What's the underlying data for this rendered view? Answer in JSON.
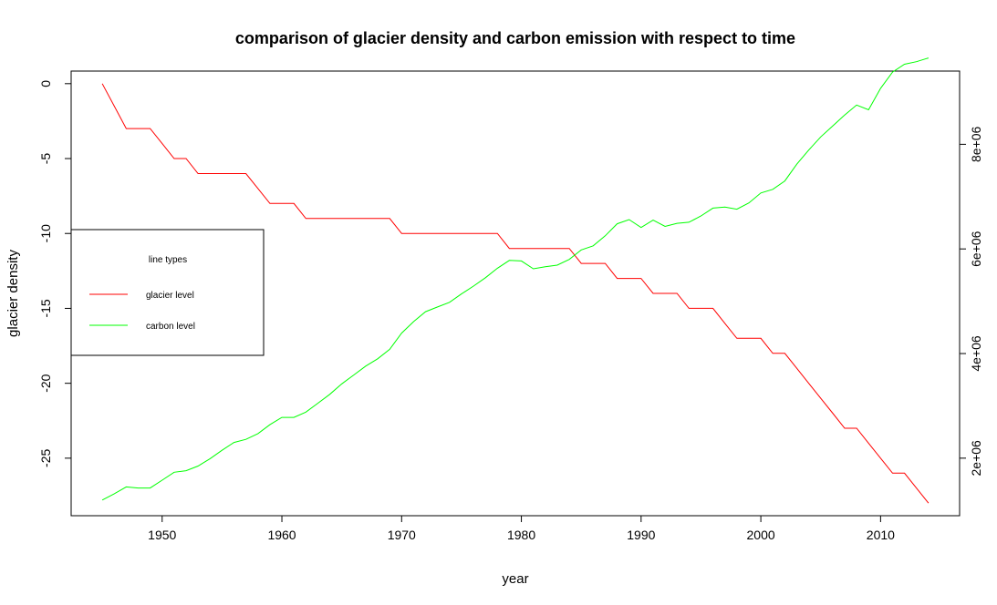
{
  "chart_data": {
    "type": "line",
    "title": "comparison of glacier density and carbon emission with respect to time",
    "xlabel": "year",
    "ylabel": "glacier density",
    "y2label": "",
    "xlim": [
      1942.4,
      2016.6
    ],
    "ylim": [
      -28.84,
      0.84
    ],
    "y2lim": [
      900000,
      9400000
    ],
    "x_ticks": [
      1950,
      1960,
      1970,
      1980,
      1990,
      2000,
      2010
    ],
    "y_ticks": [
      0,
      -5,
      -10,
      -15,
      -20,
      -25
    ],
    "y2_ticks": [
      2000000,
      4000000,
      6000000,
      8000000
    ],
    "y2_tick_labels": [
      "2e+06",
      "4e+06",
      "6e+06",
      "8e+06"
    ],
    "legend": {
      "title": "line types",
      "placement": "left",
      "entries": [
        {
          "label": "glacier level",
          "color": "#ff0000"
        },
        {
          "label": "carbon level",
          "color": "#00ff00"
        }
      ]
    },
    "series": [
      {
        "name": "glacier level",
        "axis": "left",
        "color": "#ff0000",
        "x": [
          1945,
          1947,
          1948,
          1949,
          1950,
          1951,
          1952,
          1953,
          1954,
          1955,
          1956,
          1957,
          1958,
          1959,
          1960,
          1961,
          1962,
          1963,
          1964,
          1965,
          1966,
          1967,
          1968,
          1969,
          1970,
          1971,
          1972,
          1973,
          1974,
          1975,
          1976,
          1977,
          1978,
          1979,
          1980,
          1981,
          1982,
          1983,
          1984,
          1985,
          1986,
          1987,
          1988,
          1989,
          1990,
          1991,
          1992,
          1993,
          1994,
          1995,
          1996,
          1997,
          1998,
          1999,
          2000,
          2001,
          2002,
          2003,
          2004,
          2005,
          2006,
          2007,
          2008,
          2009,
          2010,
          2011,
          2012,
          2013,
          2014
        ],
        "values": [
          0,
          -3,
          -3,
          -3,
          -4,
          -5,
          -5,
          -6,
          -6,
          -6,
          -6,
          -6,
          -7,
          -8,
          -8,
          -8,
          -9,
          -9,
          -9,
          -9,
          -9,
          -9,
          -9,
          -9,
          -10,
          -10,
          -10,
          -10,
          -10,
          -10,
          -10,
          -10,
          -10,
          -11,
          -11,
          -11,
          -11,
          -11,
          -11,
          -12,
          -12,
          -12,
          -13,
          -13,
          -13,
          -14,
          -14,
          -14,
          -15,
          -15,
          -15,
          -16,
          -17,
          -17,
          -17,
          -18,
          -18,
          -19,
          -20,
          -21,
          -22,
          -23,
          -23,
          -24,
          -25,
          -26,
          -26,
          -27,
          -28
        ]
      },
      {
        "name": "carbon level",
        "axis": "right",
        "color": "#00ff00",
        "x": [
          1945,
          1946,
          1947,
          1948,
          1949,
          1950,
          1951,
          1952,
          1953,
          1954,
          1955,
          1956,
          1957,
          1958,
          1959,
          1960,
          1961,
          1962,
          1963,
          1964,
          1965,
          1966,
          1967,
          1968,
          1969,
          1970,
          1971,
          1972,
          1973,
          1974,
          1975,
          1976,
          1977,
          1978,
          1979,
          1980,
          1981,
          1982,
          1983,
          1984,
          1985,
          1986,
          1987,
          1988,
          1989,
          1990,
          1991,
          1992,
          1993,
          1994,
          1995,
          1996,
          1997,
          1998,
          1999,
          2000,
          2001,
          2002,
          2003,
          2004,
          2005,
          2006,
          2007,
          2008,
          2009,
          2010,
          2011,
          2012,
          2013,
          2014
        ],
        "values": [
          1200000,
          1320000,
          1450000,
          1430000,
          1430000,
          1580000,
          1730000,
          1760000,
          1850000,
          1990000,
          2150000,
          2300000,
          2360000,
          2470000,
          2640000,
          2780000,
          2780000,
          2880000,
          3050000,
          3220000,
          3420000,
          3590000,
          3760000,
          3900000,
          4080000,
          4390000,
          4610000,
          4800000,
          4890000,
          4980000,
          5140000,
          5290000,
          5450000,
          5630000,
          5780000,
          5770000,
          5620000,
          5660000,
          5690000,
          5800000,
          5980000,
          6060000,
          6250000,
          6480000,
          6560000,
          6410000,
          6550000,
          6430000,
          6490000,
          6510000,
          6630000,
          6780000,
          6800000,
          6760000,
          6880000,
          7070000,
          7140000,
          7300000,
          7620000,
          7890000,
          8140000,
          8350000,
          8560000,
          8750000,
          8660000,
          9070000,
          9380000,
          9530000,
          9580000,
          9650000
        ]
      }
    ]
  }
}
